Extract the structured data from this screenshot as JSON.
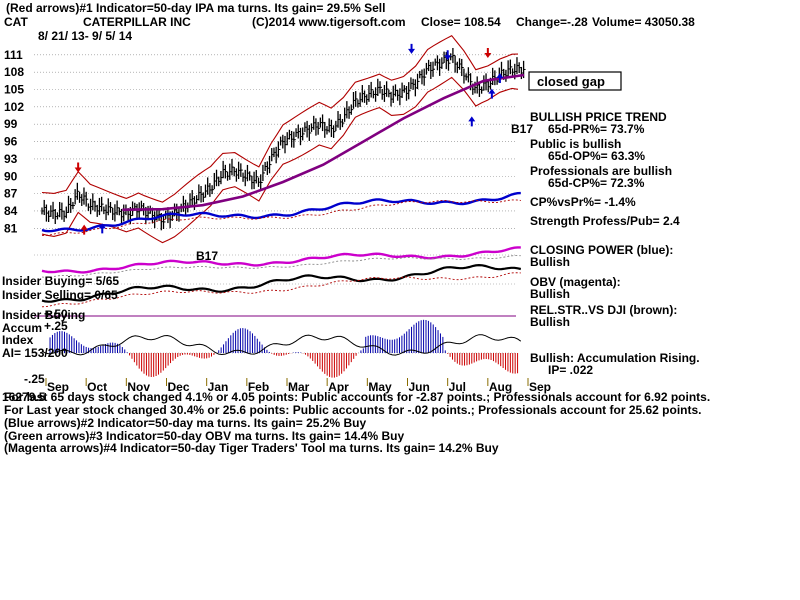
{
  "header": {
    "line1": "(Red arrows)#1 Indicator=50-day IPA ma turns. Its gain= 29.5% Sell",
    "symbol": "CAT",
    "company": "CATERPILLAR INC",
    "copyright": "(C)2014 www.tigersoft.com",
    "close": "Close=  108.54",
    "change": "Change=-.28",
    "volume": "Volume=  43050.38",
    "dates": "8/ 21/ 13-  9/ 5/ 14"
  },
  "annotations": {
    "closed_gap": "closed gap",
    "bullish_trend": "BULLISH PRICE TREND",
    "pr": "65d-PR%= 73.7%",
    "public_bullish": "Public is bullish",
    "op": "65d-OP%= 63.3%",
    "prof_bullish": "Professionals are bullish",
    "cp": "65d-CP%= 72.3%",
    "cpvspr": "CP%vsPr%= -1.4%",
    "strength": "Strength Profess/Pub= 2.4",
    "closing_power": "CLOSING POWER (blue):",
    "closing_power_val": "Bullish",
    "obv": "OBV (magenta):",
    "obv_val": "Bullish",
    "relstr": "REL.STR..VS DJI (brown):",
    "relstr_val": "Bullish",
    "accum": "Bullish: Accumulation Rising.",
    "ip": "IP=  .022",
    "b17_left": "B17",
    "b17_right": "B17"
  },
  "left_labels": {
    "insider_buying": "Insider Buying= 5/65",
    "insider_selling": "Insider Selling= 0/65",
    "insider_buying2": "Insider Buying",
    "accum": "Accum",
    "plus25": "+.25",
    "plus50": "+.50",
    "index": "Index",
    "ai": "AI= 153/200",
    "minus25": "-.25"
  },
  "footer": {
    "line1": "For last 65 days stock changed  4.1% or  4.05 points:  Public accounts for -2.87 points.;  Professionals account for  6.92 points.",
    "prefix_overlap": "16279.5",
    "line2": "For Last year stock changed  30.4% or  25.6 points:  Public accounts for -.02 points.;  Professionals account for  25.62 points.",
    "line3": "(Blue arrows)#2 Indicator=50-day ma turns. Its gain= 25.2% Buy",
    "line4": "(Green arrows)#3 Indicator=50-day OBV ma turns. Its gain= 14.4% Buy",
    "line5": "(Magenta arrows)#4 Indicator=50-day Tiger Traders' Tool ma turns. Its gain= 14.2% Buy"
  },
  "chart_data": {
    "type": "line",
    "title": "CATERPILLAR INC",
    "ylabel": "",
    "xlabel": "",
    "y_ticks": [
      111,
      108,
      105,
      102,
      99,
      96,
      93,
      90,
      87,
      84,
      81
    ],
    "ylim": [
      79.5,
      112
    ],
    "x_ticks": [
      "Sep",
      "Oct",
      "Nov",
      "Dec",
      "Jan",
      "Feb",
      "Mar",
      "Apr",
      "May",
      "Jun",
      "Jul",
      "Aug",
      "Sep"
    ],
    "grid": true,
    "series": [
      {
        "name": "",
        "color": "#000000",
        "x": [
          0,
          0.3,
          0.6,
          0.9,
          1.2,
          1.5,
          1.8,
          2.1,
          2.4,
          2.7,
          3.0,
          3.3,
          3.6,
          3.9,
          4.2,
          4.5,
          4.8,
          5.1,
          5.4,
          5.7,
          6.0,
          6.3,
          6.6,
          6.9,
          7.2,
          7.5,
          7.8,
          8.1,
          8.4,
          8.7,
          9.0,
          9.3,
          9.6,
          9.9,
          10.2,
          10.5,
          10.8,
          11.1,
          11.4,
          11.7,
          12.0
        ],
        "values": [
          84,
          83.5,
          83.8,
          87,
          85,
          84.5,
          84,
          83.5,
          84.5,
          83.5,
          82.5,
          83.5,
          85,
          86.5,
          88,
          90.5,
          91,
          90,
          89,
          93,
          96,
          97,
          98,
          99,
          98,
          100,
          103,
          104,
          105,
          104,
          104.5,
          106,
          108.5,
          109.5,
          110.5,
          108,
          105,
          106,
          107.5,
          108.5,
          108.54
        ]
      },
      {
        "name": "",
        "color": "#800080",
        "x": [
          0,
          1,
          2,
          3,
          4,
          5,
          6,
          7,
          8,
          9,
          10,
          11,
          12
        ],
        "values": [
          null,
          null,
          84.2,
          84.3,
          85,
          86.5,
          89,
          92,
          96,
          100,
          103.5,
          106.5,
          107.5
        ]
      }
    ]
  },
  "colors": {
    "band": "#b00000",
    "ma50": "#800080",
    "closing_power": "#0000cc",
    "obv": "#cc00cc",
    "relstr": "#000000",
    "accum_bars": "#0000aa",
    "accum_neg": "#cc0000",
    "grid": "#888888"
  }
}
